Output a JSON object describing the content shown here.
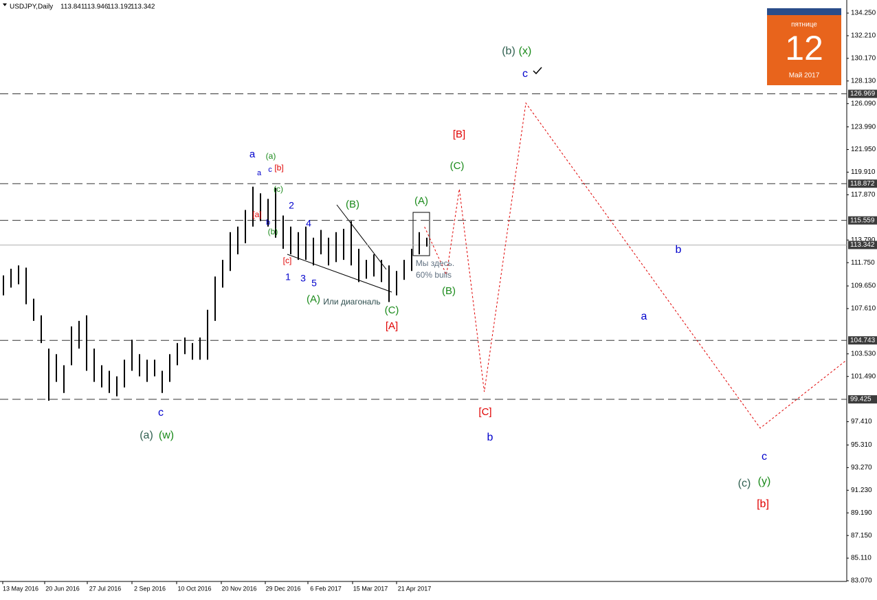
{
  "chart_data": {
    "type": "ohlc",
    "title": "USDJPY,Daily",
    "ohlc_header": [
      113.841,
      113.946,
      113.192,
      113.342
    ],
    "bar_color": "#000000",
    "high": [
      110.6,
      111.2,
      111.5,
      111.3,
      108.5,
      107,
      104,
      103.5,
      102.5,
      106,
      106.5,
      107,
      104,
      102.5,
      102,
      101.5,
      103,
      104.8,
      103.5,
      103,
      103,
      102,
      103.5,
      104.5,
      105,
      104.5,
      105,
      107.5,
      110.5,
      112,
      114.5,
      115,
      116.5,
      118.6,
      118,
      117.5,
      118.5,
      116,
      115,
      114.5,
      115,
      114,
      114.7,
      114,
      114.5,
      114.8,
      115.5,
      113,
      112,
      112.5,
      112,
      111.5,
      111,
      112,
      113,
      114.5,
      114
    ],
    "low": [
      108.8,
      109.5,
      109.8,
      108,
      106.5,
      104.5,
      99.3,
      101,
      100,
      102.5,
      104,
      102,
      101,
      100.5,
      100,
      99.7,
      100.5,
      102,
      101.5,
      101,
      101.5,
      100,
      101,
      102.5,
      103.5,
      103,
      103,
      103,
      106.5,
      109.5,
      111,
      112.5,
      113.5,
      115,
      115.5,
      115,
      114,
      113,
      112.5,
      112,
      112,
      111.5,
      112.5,
      111.5,
      111.8,
      112,
      111.5,
      110,
      110.3,
      110.5,
      110,
      108.2,
      108.8,
      110.2,
      111,
      112.5,
      113.2
    ],
    "dates": [
      "13 May 2016",
      "20 Jun 2016",
      "27 Jul 2016",
      "2 Sep 2016",
      "10 Oct 2016",
      "20 Nov 2016",
      "29 Dec 2016",
      "6 Feb 2017",
      "15 Mar 2017",
      "21 Apr 2017"
    ],
    "ylim": [
      83.07,
      135.43
    ],
    "yticks": [
      {
        "value": 134.25,
        "label": "134.250"
      },
      {
        "value": 132.21,
        "label": "132.210"
      },
      {
        "value": 130.17,
        "label": "130.170"
      },
      {
        "value": 128.13,
        "label": "128.130"
      },
      {
        "value": 126.09,
        "label": "126.090"
      },
      {
        "value": 123.99,
        "label": "123.990"
      },
      {
        "value": 121.95,
        "label": "121.950"
      },
      {
        "value": 119.91,
        "label": "119.910"
      },
      {
        "value": 117.87,
        "label": "117.870"
      },
      {
        "value": 113.79,
        "label": "113.790"
      },
      {
        "value": 111.75,
        "label": "111.750"
      },
      {
        "value": 109.65,
        "label": "109.650"
      },
      {
        "value": 107.61,
        "label": "107.610"
      },
      {
        "value": 103.53,
        "label": "103.530"
      },
      {
        "value": 101.49,
        "label": "101.490"
      },
      {
        "value": 97.41,
        "label": "97.410"
      },
      {
        "value": 95.31,
        "label": "95.310"
      },
      {
        "value": 93.27,
        "label": "93.270"
      },
      {
        "value": 91.23,
        "label": "91.230"
      },
      {
        "value": 89.19,
        "label": "89.190"
      },
      {
        "value": 87.15,
        "label": "87.150"
      },
      {
        "value": 85.11,
        "label": "85.110"
      },
      {
        "value": 83.07,
        "label": "83.070"
      }
    ],
    "levels": [
      126.969,
      118.872,
      115.559,
      104.743,
      99.425
    ],
    "projection": {
      "color": "#e00000",
      "x": [
        55.7,
        58.6,
        60.3,
        63.6,
        69.1,
        100.1,
        111.4
      ],
      "y": [
        114.98,
        110.65,
        118.39,
        100.11,
        126.14,
        96.83,
        102.9
      ]
    },
    "annotations": [
      {
        "text": "(b)",
        "color": "#2f5f4f"
      },
      {
        "text": "(x)",
        "color": "#1a8a1a"
      },
      {
        "text": "c",
        "color": "#0000cc"
      },
      {
        "text": "[B]",
        "color": "#e00000"
      },
      {
        "text": "(C)",
        "color": "#1a8a1a"
      },
      {
        "text": "(A)",
        "color": "#1a8a1a"
      },
      {
        "text": "a",
        "color": "#0000cc"
      },
      {
        "text": "(a)",
        "color": "#1a8a1a"
      },
      {
        "text": "a",
        "color": "#0000cc"
      },
      {
        "text": "c",
        "color": "#0000cc"
      },
      {
        "text": "[b]",
        "color": "#e00000"
      },
      {
        "text": "(c)",
        "color": "#1a8a1a"
      },
      {
        "text": "[a]",
        "color": "#e00000"
      },
      {
        "text": "b",
        "color": "#0000cc"
      },
      {
        "text": "(b)",
        "color": "#1a8a1a"
      },
      {
        "text": "2",
        "color": "#0000cc"
      },
      {
        "text": "4",
        "color": "#0000cc"
      },
      {
        "text": "(B)",
        "color": "#1a8a1a"
      },
      {
        "text": "[c]",
        "color": "#e00000"
      },
      {
        "text": "1",
        "color": "#0000cc"
      },
      {
        "text": "3",
        "color": "#0000cc"
      },
      {
        "text": "5",
        "color": "#0000cc"
      },
      {
        "text": "(A)",
        "color": "#1a8a1a"
      },
      {
        "text": "Или диагональ",
        "color": "#2f4f4f"
      },
      {
        "text": "(C)",
        "color": "#1a8a1a"
      },
      {
        "text": "[A]",
        "color": "#e00000"
      },
      {
        "text": "Мы здесь.",
        "color": "#607080"
      },
      {
        "text": "60% bulls",
        "color": "#607080"
      },
      {
        "text": "(B)",
        "color": "#1a8a1a"
      },
      {
        "text": "[C]",
        "color": "#e00000"
      },
      {
        "text": "b",
        "color": "#0000cc"
      },
      {
        "text": "b",
        "color": "#0000cc"
      },
      {
        "text": "a",
        "color": "#0000cc"
      },
      {
        "text": "c",
        "color": "#0000cc"
      },
      {
        "text": "(a)",
        "color": "#2f5f4f"
      },
      {
        "text": "(w)",
        "color": "#1a8a1a"
      },
      {
        "text": "c",
        "color": "#0000cc"
      },
      {
        "text": "(c)",
        "color": "#2f5f4f"
      },
      {
        "text": "(y)",
        "color": "#1a8a1a"
      },
      {
        "text": "[b]",
        "color": "#e00000"
      }
    ]
  },
  "calendar": {
    "weekday": "пятнице",
    "day": 12,
    "month": "Май 2017"
  }
}
